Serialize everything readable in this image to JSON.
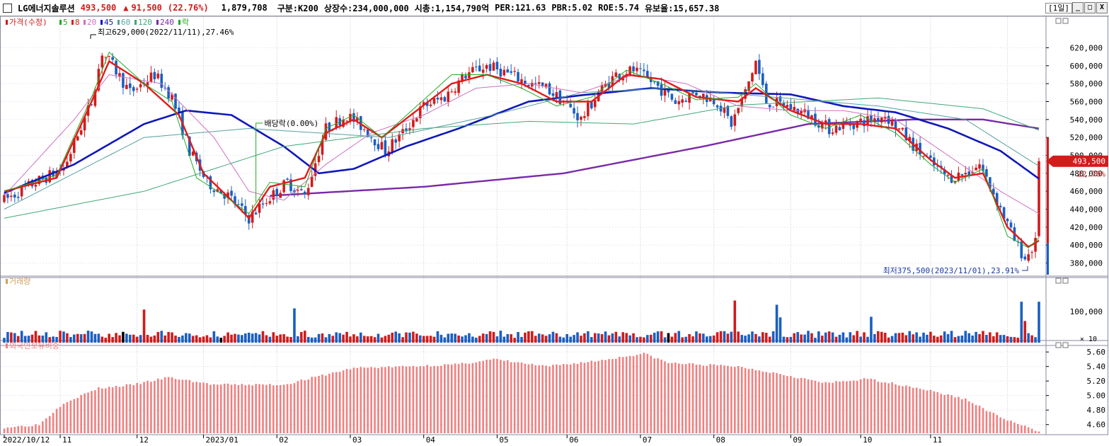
{
  "header": {
    "stock_name": "LG에너지솔루션",
    "price": "493,500",
    "change_arrow": "▲",
    "change": "91,500",
    "change_pct": "(22.76%)",
    "volume": "1,879,708",
    "market": "구분:K200",
    "listed": "상장수:234,000,000",
    "cap": "시총:1,154,790억",
    "per": "PER:121.63",
    "pbr": "PBR:5.02",
    "roe": "ROE:5.74",
    "float": "유보율:15,657.38",
    "period": "[1일]",
    "btn_min": "_",
    "btn_max": "□",
    "btn_close": "X"
  },
  "colors": {
    "up": "#d21b1b",
    "down": "#1a5fc2",
    "ma5": "#22aa22",
    "ma8": "#e01b1b",
    "ma20": "#d070c0",
    "ma45": "#1018b8",
    "ma60": "#56a0a0",
    "ma120": "#40a878",
    "ma240": "#7a2aa8",
    "foreign": "#f08080"
  },
  "chart_data": [
    {
      "type": "candlestick",
      "panel": "price",
      "legend": [
        {
          "label": "가격(수정)",
          "color": "#d21b1b"
        },
        {
          "label": "5",
          "color": "#22aa22"
        },
        {
          "label": "8",
          "color": "#e01b1b"
        },
        {
          "label": "20",
          "color": "#d070c0"
        },
        {
          "label": "45",
          "color": "#1018b8"
        },
        {
          "label": "60",
          "color": "#56a0a0"
        },
        {
          "label": "120",
          "color": "#40a878"
        },
        {
          "label": "240",
          "color": "#7a2aa8"
        },
        {
          "label": "락",
          "color": "#22aa22"
        }
      ],
      "y_ticks": [
        380000,
        400000,
        420000,
        440000,
        460000,
        480000,
        500000,
        520000,
        540000,
        560000,
        580000,
        600000,
        620000
      ],
      "y_tick_labels": [
        "380,000",
        "400,000",
        "420,000",
        "440,000",
        "460,000",
        "480,000",
        "500,000",
        "520,000",
        "540,000",
        "560,000",
        "580,000",
        "600,000",
        "620,000"
      ],
      "ylim": [
        367000,
        648000
      ],
      "x_labels": [
        "2022/10/12",
        "11",
        "12",
        "2023/01",
        "02",
        "03",
        "04",
        "05",
        "06",
        "07",
        "08",
        "09",
        "10",
        "11"
      ],
      "ohlc_anchors": [
        [
          0,
          450000
        ],
        [
          9,
          470000
        ],
        [
          17,
          485000
        ],
        [
          25,
          560000
        ],
        [
          28,
          615000
        ],
        [
          31,
          600000
        ],
        [
          36,
          570000
        ],
        [
          43,
          590000
        ],
        [
          48,
          565000
        ],
        [
          53,
          505000
        ],
        [
          58,
          470000
        ],
        [
          64,
          455000
        ],
        [
          70,
          430000
        ],
        [
          75,
          450000
        ],
        [
          81,
          470000
        ],
        [
          86,
          455000
        ],
        [
          92,
          530000
        ],
        [
          98,
          545000
        ],
        [
          103,
          530000
        ],
        [
          109,
          505000
        ],
        [
          114,
          525000
        ],
        [
          120,
          555000
        ],
        [
          126,
          565000
        ],
        [
          132,
          590000
        ],
        [
          138,
          600000
        ],
        [
          145,
          590000
        ],
        [
          150,
          580000
        ],
        [
          155,
          575000
        ],
        [
          160,
          560000
        ],
        [
          165,
          540000
        ],
        [
          170,
          570000
        ],
        [
          175,
          590000
        ],
        [
          180,
          595000
        ],
        [
          186,
          580000
        ],
        [
          192,
          560000
        ],
        [
          198,
          570000
        ],
        [
          204,
          560000
        ],
        [
          208,
          535000
        ],
        [
          212,
          570000
        ],
        [
          215,
          605000
        ],
        [
          218,
          560000
        ],
        [
          224,
          555000
        ],
        [
          230,
          545000
        ],
        [
          236,
          530000
        ],
        [
          242,
          535000
        ],
        [
          248,
          540000
        ],
        [
          252,
          545000
        ],
        [
          258,
          520000
        ],
        [
          264,
          495000
        ],
        [
          270,
          475000
        ],
        [
          275,
          480000
        ],
        [
          279,
          490000
        ],
        [
          284,
          450000
        ],
        [
          289,
          405000
        ],
        [
          292,
          385000
        ],
        [
          295,
          402000
        ],
        [
          296,
          493500
        ]
      ],
      "ma_lines": [
        {
          "name": "45",
          "color": "#1018b8",
          "points": [
            [
              0,
              458000
            ],
            [
              20,
              490000
            ],
            [
              40,
              535000
            ],
            [
              52,
              550000
            ],
            [
              65,
              545000
            ],
            [
              80,
              510000
            ],
            [
              90,
              480000
            ],
            [
              100,
              485000
            ],
            [
              115,
              510000
            ],
            [
              130,
              530000
            ],
            [
              150,
              560000
            ],
            [
              165,
              567000
            ],
            [
              185,
              575000
            ],
            [
              205,
              570000
            ],
            [
              225,
              568000
            ],
            [
              240,
              555000
            ],
            [
              255,
              548000
            ],
            [
              270,
              530000
            ],
            [
              285,
              505000
            ],
            [
              296,
              474000
            ]
          ]
        },
        {
          "name": "240",
          "color": "#7a2aa8",
          "points": [
            [
              76,
              455000
            ],
            [
              120,
              465000
            ],
            [
              160,
              480000
            ],
            [
              200,
              510000
            ],
            [
              230,
              535000
            ],
            [
              260,
              540000
            ],
            [
              280,
              540000
            ],
            [
              296,
              530000
            ]
          ]
        },
        {
          "name": "120",
          "color": "#40a878",
          "points": [
            [
              0,
              430000
            ],
            [
              40,
              460000
            ],
            [
              80,
              510000
            ],
            [
              120,
              530000
            ],
            [
              150,
              538000
            ],
            [
              180,
              535000
            ],
            [
              210,
              556000
            ],
            [
              250,
              564000
            ],
            [
              280,
              552000
            ],
            [
              296,
              528000
            ]
          ]
        },
        {
          "name": "60",
          "color": "#56a0a0",
          "points": [
            [
              0,
              440000
            ],
            [
              40,
              520000
            ],
            [
              70,
              530000
            ],
            [
              90,
              525000
            ],
            [
              110,
              520000
            ],
            [
              140,
              545000
            ],
            [
              165,
              570000
            ],
            [
              190,
              575000
            ],
            [
              220,
              565000
            ],
            [
              250,
              555000
            ],
            [
              275,
              540000
            ],
            [
              296,
              488000
            ]
          ]
        },
        {
          "name": "20",
          "color": "#d070c0",
          "points": [
            [
              0,
              455000
            ],
            [
              20,
              540000
            ],
            [
              30,
              590000
            ],
            [
              45,
              580000
            ],
            [
              60,
              520000
            ],
            [
              70,
              460000
            ],
            [
              80,
              450000
            ],
            [
              92,
              490000
            ],
            [
              105,
              525000
            ],
            [
              120,
              545000
            ],
            [
              135,
              575000
            ],
            [
              150,
              580000
            ],
            [
              165,
              570000
            ],
            [
              180,
              590000
            ],
            [
              195,
              580000
            ],
            [
              210,
              555000
            ],
            [
              225,
              550000
            ],
            [
              240,
              550000
            ],
            [
              255,
              540000
            ],
            [
              270,
              500000
            ],
            [
              285,
              460000
            ],
            [
              296,
              435000
            ]
          ]
        },
        {
          "name": "8",
          "color": "#e01b1b",
          "points": [
            [
              0,
              460000
            ],
            [
              15,
              475000
            ],
            [
              25,
              560000
            ],
            [
              30,
              605000
            ],
            [
              40,
              580000
            ],
            [
              50,
              545000
            ],
            [
              57,
              480000
            ],
            [
              65,
              450000
            ],
            [
              70,
              430000
            ],
            [
              76,
              465000
            ],
            [
              86,
              475000
            ],
            [
              92,
              525000
            ],
            [
              100,
              540000
            ],
            [
              108,
              520000
            ],
            [
              118,
              550000
            ],
            [
              128,
              580000
            ],
            [
              138,
              590000
            ],
            [
              148,
              580000
            ],
            [
              158,
              560000
            ],
            [
              168,
              560000
            ],
            [
              178,
              590000
            ],
            [
              188,
              585000
            ],
            [
              198,
              565000
            ],
            [
              210,
              560000
            ],
            [
              215,
              575000
            ],
            [
              225,
              550000
            ],
            [
              235,
              535000
            ],
            [
              245,
              535000
            ],
            [
              255,
              530000
            ],
            [
              265,
              495000
            ],
            [
              272,
              475000
            ],
            [
              280,
              480000
            ],
            [
              287,
              420000
            ],
            [
              293,
              398000
            ],
            [
              296,
              405000
            ]
          ]
        },
        {
          "name": "5",
          "color": "#22aa22",
          "points": [
            [
              0,
              460000
            ],
            [
              15,
              478000
            ],
            [
              25,
              565000
            ],
            [
              30,
              615000
            ],
            [
              40,
              580000
            ],
            [
              48,
              560000
            ],
            [
              55,
              475000
            ],
            [
              63,
              455000
            ],
            [
              70,
              435000
            ],
            [
              76,
              470000
            ],
            [
              86,
              465000
            ],
            [
              92,
              530000
            ],
            [
              100,
              545000
            ],
            [
              108,
              520000
            ],
            [
              118,
              555000
            ],
            [
              128,
              590000
            ],
            [
              138,
              590000
            ],
            [
              148,
              575000
            ],
            [
              158,
              555000
            ],
            [
              168,
              565000
            ],
            [
              178,
              595000
            ],
            [
              188,
              580000
            ],
            [
              198,
              562000
            ],
            [
              210,
              565000
            ],
            [
              215,
              580000
            ],
            [
              225,
              545000
            ],
            [
              235,
              530000
            ],
            [
              245,
              545000
            ],
            [
              255,
              525000
            ],
            [
              265,
              490000
            ],
            [
              272,
              470000
            ],
            [
              280,
              485000
            ],
            [
              287,
              410000
            ],
            [
              293,
              397000
            ],
            [
              296,
              408000
            ]
          ]
        }
      ],
      "annotations": {
        "high": "최고629,000(2022/11/11),27.46%",
        "low": "최저375,500(2023/11/01),23.91%",
        "dividend": "배당락(0.00%)",
        "last_price": "493,500",
        "last_pct": "22.76%"
      }
    },
    {
      "type": "bar",
      "panel": "volume",
      "legend": [
        {
          "label": "거래량",
          "color": "#d2a05a"
        }
      ],
      "y_ticks": [
        100000
      ],
      "y_tick_labels": [
        "100,000"
      ],
      "unit": "× 10",
      "spikes": [
        [
          40,
          0.55
        ],
        [
          83,
          0.57
        ],
        [
          209,
          0.7
        ],
        [
          221,
          0.63
        ],
        [
          222,
          0.42
        ],
        [
          248,
          0.43
        ],
        [
          291,
          0.68
        ],
        [
          292,
          0.36
        ],
        [
          296,
          0.68
        ]
      ]
    },
    {
      "type": "bar",
      "panel": "foreign_ratio",
      "legend": [
        {
          "label": "외국인보유비중",
          "color": "#f08080"
        }
      ],
      "y_ticks": [
        4.6,
        4.8,
        5.0,
        5.2,
        5.4,
        5.6
      ],
      "y_tick_labels": [
        "4.60",
        "4.80",
        "5.00",
        "5.20",
        "5.40",
        "5.60"
      ],
      "ylim": [
        4.5,
        5.67
      ],
      "anchors": [
        [
          0,
          4.56
        ],
        [
          10,
          4.6
        ],
        [
          17,
          4.9
        ],
        [
          27,
          5.1
        ],
        [
          37,
          5.15
        ],
        [
          47,
          5.25
        ],
        [
          60,
          5.15
        ],
        [
          80,
          5.15
        ],
        [
          100,
          5.38
        ],
        [
          115,
          5.4
        ],
        [
          130,
          5.43
        ],
        [
          140,
          5.5
        ],
        [
          155,
          5.4
        ],
        [
          170,
          5.48
        ],
        [
          183,
          5.58
        ],
        [
          190,
          5.45
        ],
        [
          210,
          5.4
        ],
        [
          222,
          5.3
        ],
        [
          235,
          5.17
        ],
        [
          247,
          5.23
        ],
        [
          262,
          5.1
        ],
        [
          275,
          4.95
        ],
        [
          285,
          4.7
        ],
        [
          296,
          4.5
        ]
      ]
    }
  ]
}
